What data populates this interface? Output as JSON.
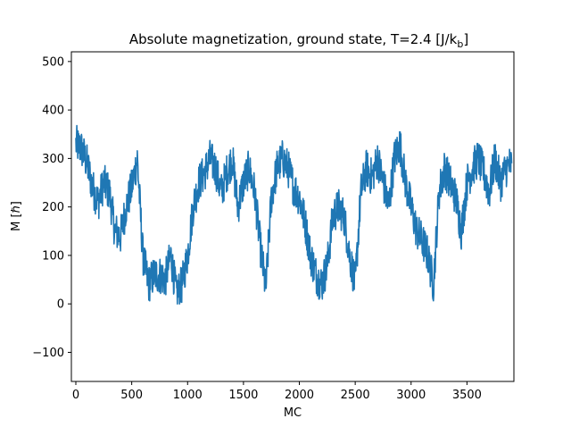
{
  "chart_data": {
    "type": "line",
    "title": "Absolute magnetization, ground state, T=2.4 [J/k",
    "title_subscript": "b",
    "title_suffix": "]",
    "xlabel": "MC",
    "ylabel": "M [ℏ]",
    "xlim": [
      -40,
      3920
    ],
    "ylim": [
      -160,
      520
    ],
    "xticks": [
      0,
      500,
      1000,
      1500,
      2000,
      2500,
      3000,
      3500
    ],
    "xtick_labels": [
      "0",
      "500",
      "1000",
      "1500",
      "2000",
      "2500",
      "3000",
      "3500"
    ],
    "yticks": [
      -100,
      0,
      100,
      200,
      300,
      400,
      500
    ],
    "ytick_labels": [
      "−100",
      "0",
      "100",
      "200",
      "300",
      "400",
      "500"
    ],
    "grid": false,
    "legend": "none",
    "series": [
      {
        "color": "#1f77b4",
        "x": [
          0,
          50,
          100,
          150,
          200,
          250,
          300,
          350,
          400,
          450,
          500,
          550,
          600,
          650,
          700,
          750,
          800,
          850,
          900,
          950,
          1000,
          1050,
          1100,
          1150,
          1200,
          1250,
          1300,
          1350,
          1400,
          1450,
          1500,
          1550,
          1600,
          1650,
          1700,
          1750,
          1800,
          1850,
          1900,
          1950,
          2000,
          2050,
          2100,
          2150,
          2200,
          2250,
          2300,
          2350,
          2400,
          2450,
          2500,
          2550,
          2600,
          2650,
          2700,
          2750,
          2800,
          2850,
          2900,
          2950,
          3000,
          3050,
          3100,
          3150,
          3200,
          3250,
          3300,
          3350,
          3400,
          3450,
          3500,
          3550,
          3600,
          3650,
          3700,
          3750,
          3800,
          3850,
          3900
        ],
        "y": [
          330,
          320,
          290,
          240,
          210,
          250,
          230,
          150,
          140,
          200,
          240,
          300,
          100,
          40,
          60,
          60,
          50,
          100,
          20,
          40,
          100,
          200,
          250,
          270,
          300,
          280,
          230,
          270,
          300,
          200,
          250,
          280,
          230,
          120,
          30,
          220,
          280,
          300,
          280,
          240,
          220,
          170,
          100,
          60,
          40,
          80,
          180,
          200,
          180,
          100,
          40,
          230,
          280,
          260,
          300,
          250,
          200,
          300,
          330,
          250,
          200,
          150,
          130,
          100,
          40,
          230,
          280,
          250,
          220,
          150,
          250,
          280,
          300,
          270,
          230,
          300,
          250,
          280,
          290
        ]
      }
    ]
  }
}
